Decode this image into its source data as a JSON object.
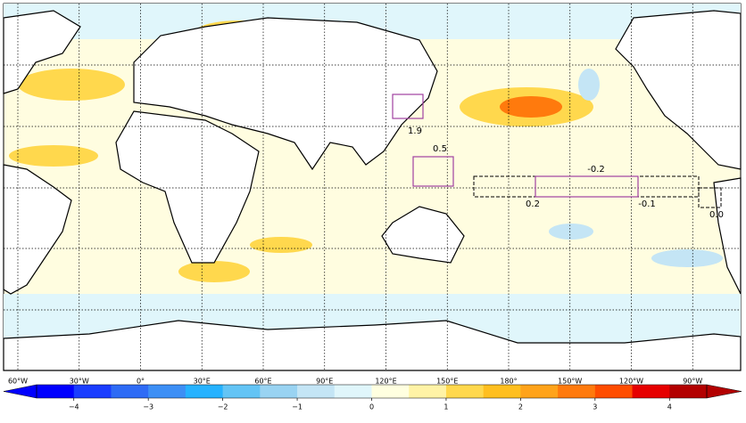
{
  "map": {
    "lon_labels": [
      "60°W",
      "30°W",
      "0°",
      "30°E",
      "60°E",
      "90°E",
      "120°E",
      "150°E",
      "180°",
      "150°W",
      "120°W",
      "90°W"
    ],
    "boxes": [
      {
        "label": "1.9"
      },
      {
        "label": "0.5"
      },
      {
        "label": "-0.2"
      },
      {
        "label": "0.2"
      },
      {
        "label": "-0.1"
      },
      {
        "label": "0.0"
      }
    ]
  },
  "colorbar": {
    "lim": [
      -4.5,
      4.5
    ],
    "colors": [
      "#0000ff",
      "#1a3dff",
      "#2e6bf5",
      "#3d8ff5",
      "#26b2ff",
      "#63c4f5",
      "#99d3f2",
      "#c4e5f5",
      "#e0f6fb",
      "#ffffe0",
      "#fff3a6",
      "#ffd84d",
      "#ffbf1f",
      "#ffa31a",
      "#ff7a0d",
      "#ff4d00",
      "#e60000",
      "#b30000"
    ],
    "ticks": [
      {
        "value": -4,
        "label": "−4"
      },
      {
        "value": -3,
        "label": "−3"
      },
      {
        "value": -2,
        "label": "−2"
      },
      {
        "value": -1,
        "label": "−1"
      },
      0,
      1,
      2,
      3,
      4
    ]
  }
}
